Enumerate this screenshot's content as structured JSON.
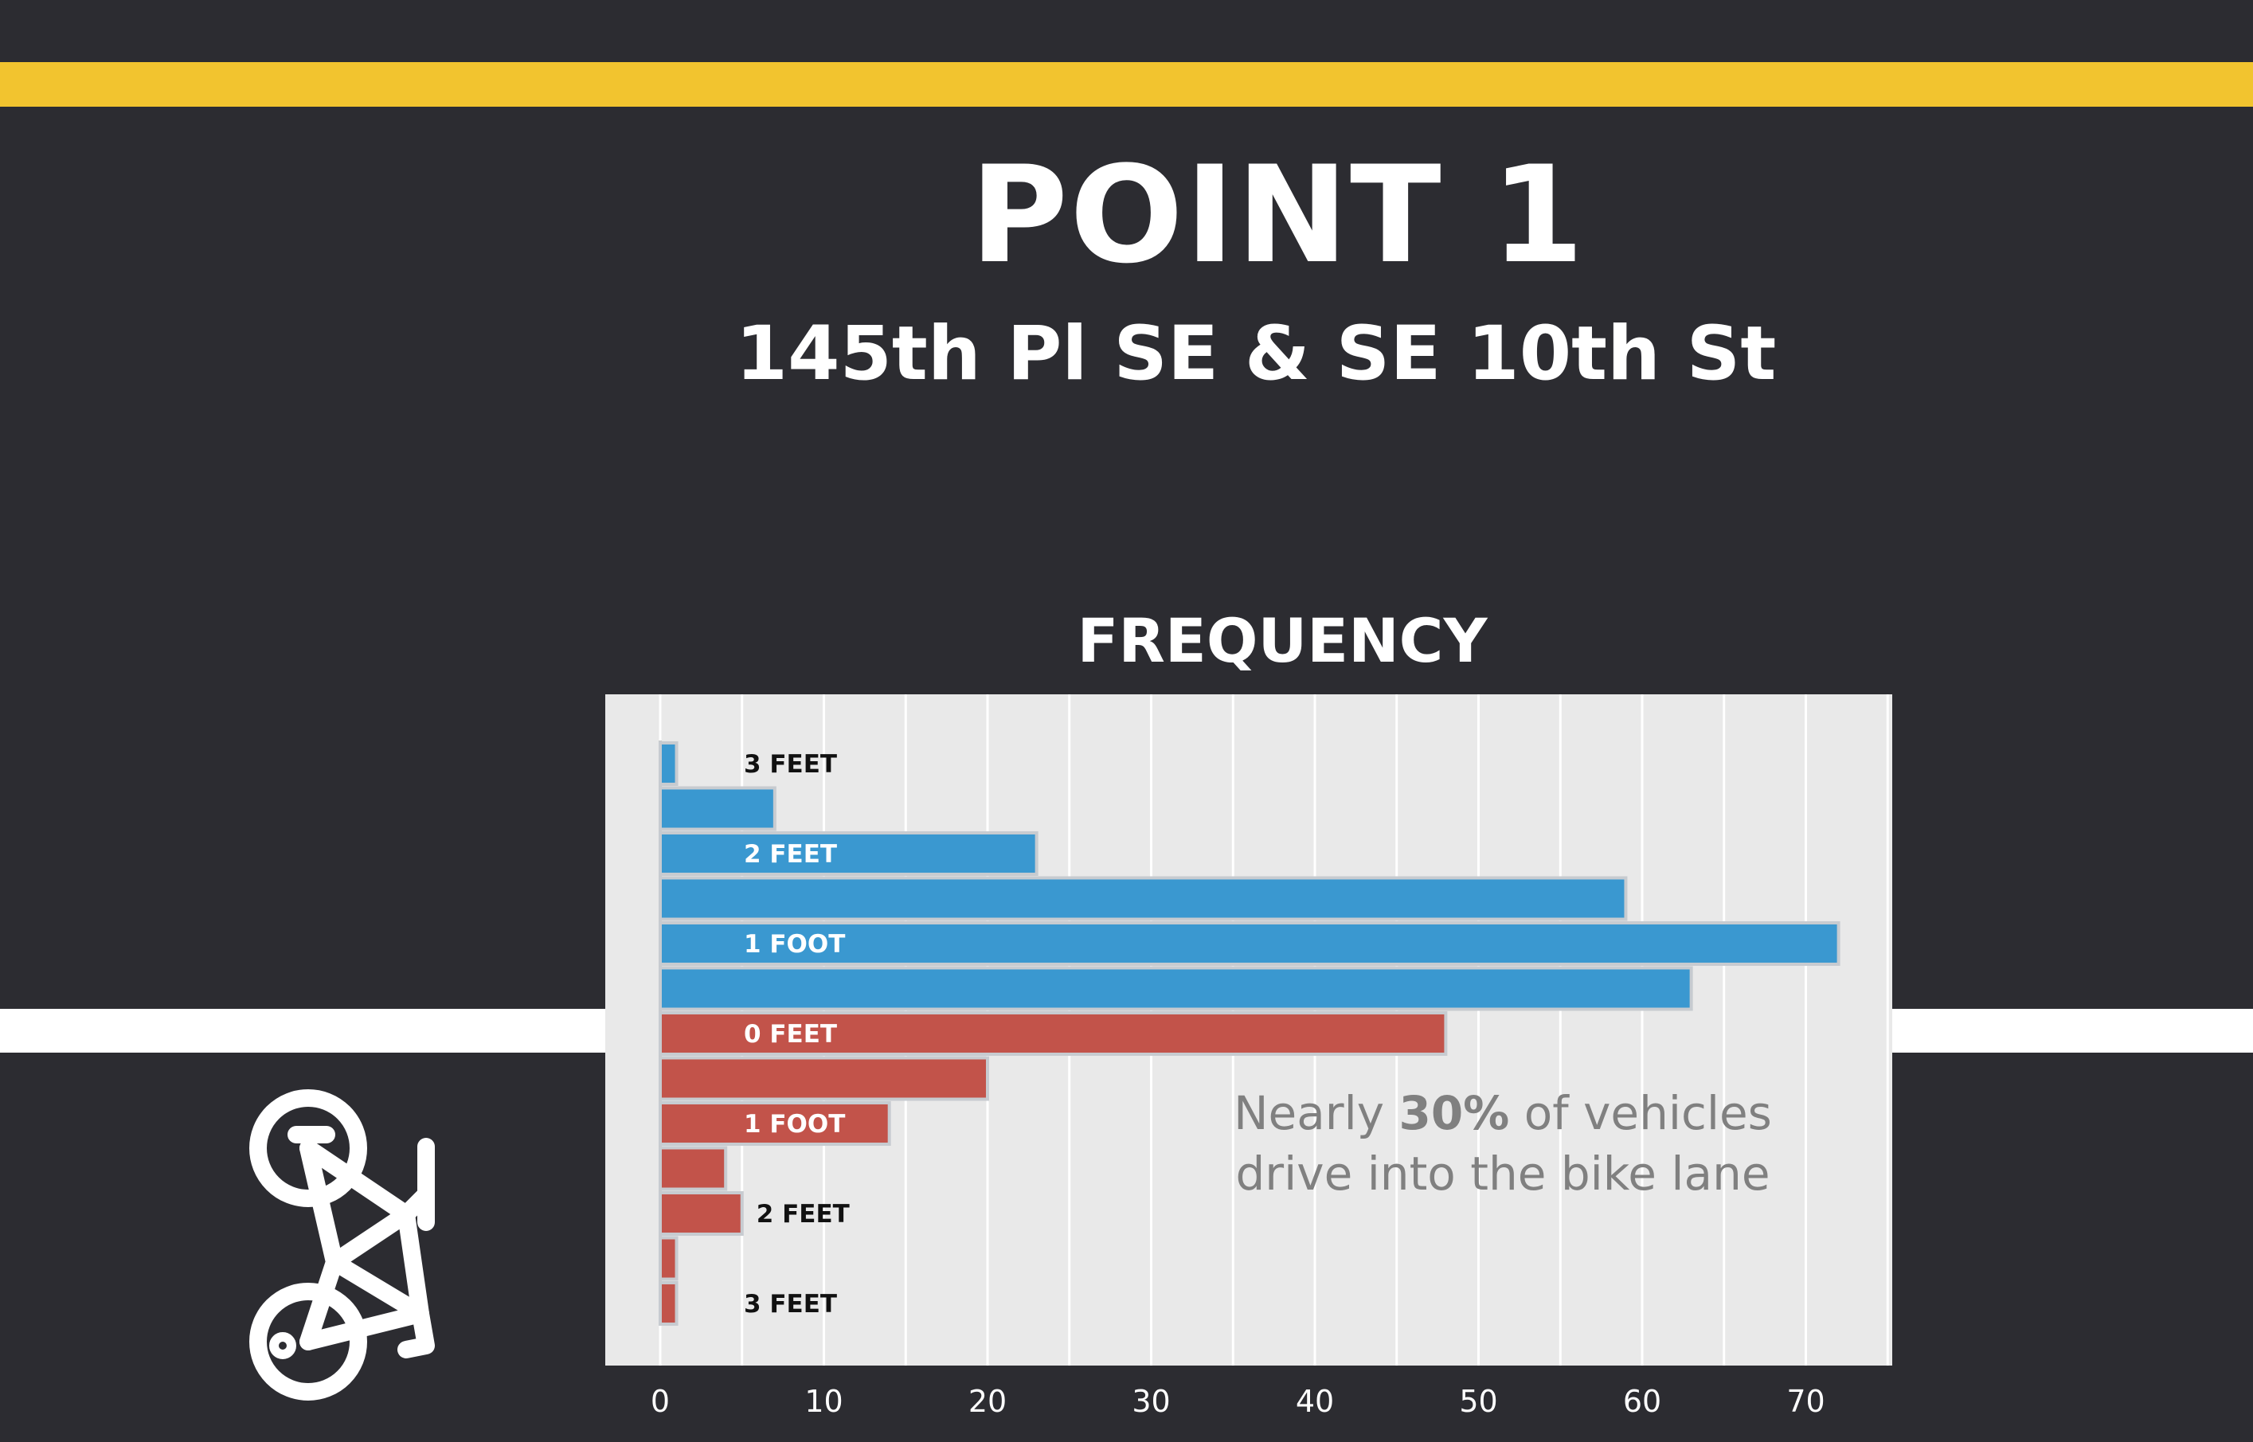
{
  "page": {
    "title": "POINT 1",
    "subtitle": "145th Pl SE & SE 10th St"
  },
  "colors": {
    "background": "#2c2c31",
    "lane_yellow": "#f2c42f",
    "lane_white": "#ffffff",
    "panel": "#e9e9e9",
    "gridline": "#ffffff",
    "blue": "#3a98d0",
    "red": "#c2534a",
    "annotation": "#808080"
  },
  "icons": [
    "bicycle-icon"
  ],
  "chart_data": {
    "type": "bar",
    "orientation": "horizontal",
    "title": "FREQUENCY",
    "xlim": [
      0,
      75
    ],
    "xticks": [
      0,
      10,
      20,
      30,
      40,
      50,
      60,
      70
    ],
    "grid": true,
    "series": [
      {
        "color": "blue",
        "values": [
          1,
          7,
          23,
          59,
          72,
          63
        ]
      },
      {
        "color": "red",
        "values": [
          48,
          20,
          14,
          4,
          5,
          1,
          1
        ]
      }
    ],
    "bar_labels": [
      {
        "text": "3 FEET",
        "series": 0,
        "row": 0,
        "inside": false
      },
      {
        "text": "2 FEET",
        "series": 0,
        "row": 2,
        "inside": true
      },
      {
        "text": "1 FOOT",
        "series": 0,
        "row": 4,
        "inside": true
      },
      {
        "text": "0 FEET",
        "series": 1,
        "row": 0,
        "inside": true
      },
      {
        "text": "1 FOOT",
        "series": 1,
        "row": 2,
        "inside": true
      },
      {
        "text": "2 FEET",
        "series": 1,
        "row": 4,
        "inside": false
      },
      {
        "text": "3 FEET",
        "series": 1,
        "row": 6,
        "inside": false
      }
    ],
    "annotation": {
      "line1_pre": "Nearly ",
      "line1_bold": "30%",
      "line1_post": " of vehicles",
      "line2": "drive into the bike lane"
    }
  }
}
